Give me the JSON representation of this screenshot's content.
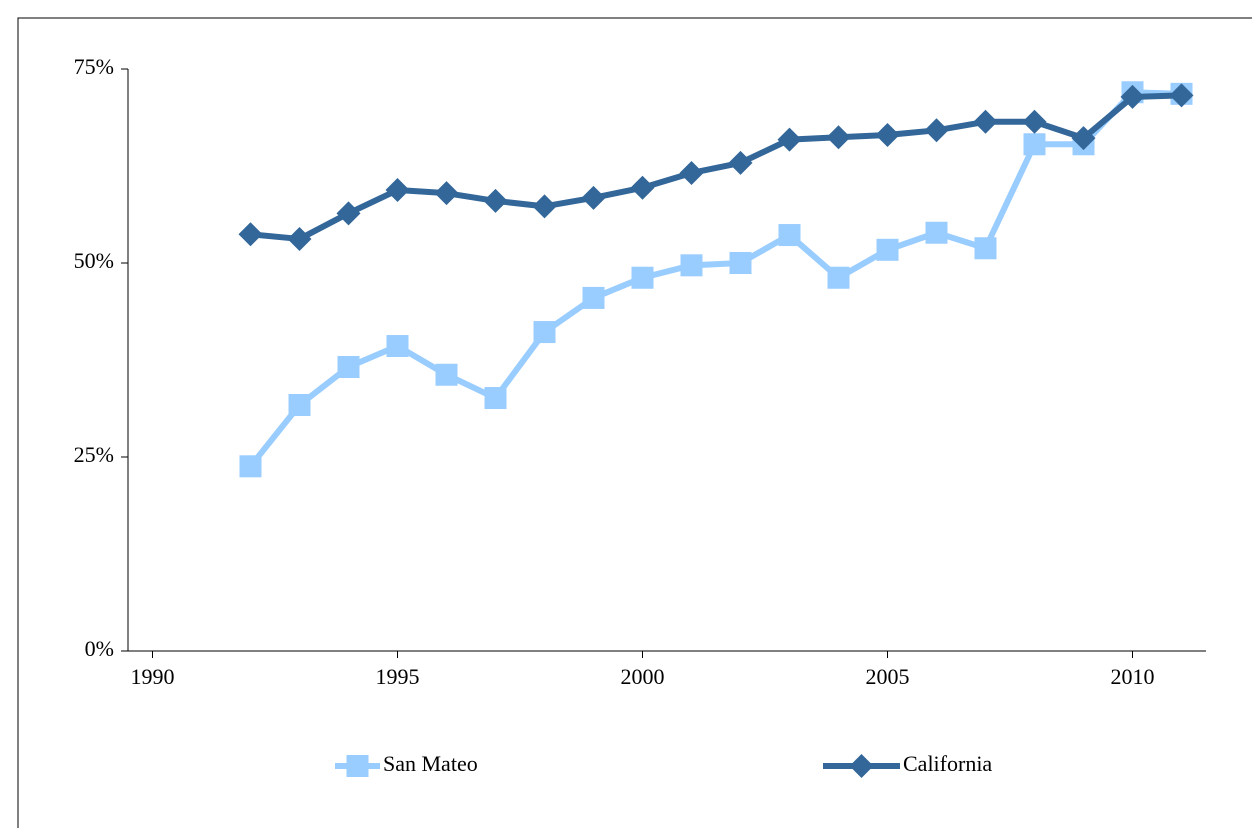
{
  "chart_data": {
    "type": "line",
    "x": [
      1992,
      1993,
      1994,
      1995,
      1996,
      1997,
      1998,
      1999,
      2000,
      2001,
      2002,
      2003,
      2004,
      2005,
      2006,
      2007,
      2008,
      2009,
      2010,
      2011
    ],
    "series": [
      {
        "name": "San Mateo",
        "color": "#99ccff",
        "marker": "square",
        "values": [
          23.8,
          31.7,
          36.6,
          39.3,
          35.6,
          32.6,
          41.1,
          45.5,
          48.1,
          49.7,
          50.0,
          53.6,
          48.1,
          51.7,
          53.9,
          51.9,
          65.3,
          65.3,
          72.0,
          71.8
        ]
      },
      {
        "name": "California",
        "color": "#336699",
        "marker": "diamond",
        "values": [
          53.7,
          53.1,
          56.4,
          59.4,
          59.0,
          58.0,
          57.3,
          58.4,
          59.7,
          61.6,
          62.9,
          65.9,
          66.2,
          66.5,
          67.1,
          68.2,
          68.2,
          66.1,
          71.4,
          71.6
        ]
      }
    ],
    "xlim": [
      1989.5,
      2011.5
    ],
    "xticks": [
      1990,
      1995,
      2000,
      2005,
      2010
    ],
    "ylim": [
      0,
      75
    ],
    "yticks": [
      {
        "value": 0,
        "label": "0%"
      },
      {
        "value": 25,
        "label": "25%"
      },
      {
        "value": 50,
        "label": "50%"
      },
      {
        "value": 75,
        "label": "75%"
      }
    ],
    "grid": false,
    "legend": "bottom"
  }
}
